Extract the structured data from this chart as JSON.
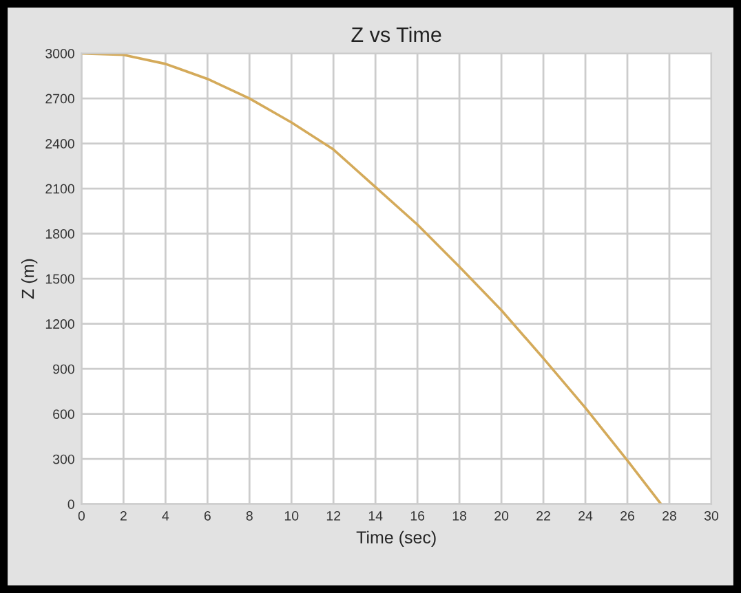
{
  "chart_data": {
    "type": "line",
    "title": "Z vs Time",
    "xlabel": "Time (sec)",
    "ylabel": "Z (m)",
    "x": [
      0,
      2,
      4,
      6,
      8,
      10,
      12,
      14,
      16,
      18,
      20,
      22,
      24,
      26,
      27.6
    ],
    "series": [
      {
        "color": "#d4aa5a",
        "values": [
          3000,
          2990,
          2930,
          2830,
          2700,
          2540,
          2360,
          2110,
          1860,
          1580,
          1290,
          970,
          640,
          290,
          0
        ]
      }
    ],
    "xlim": [
      0,
      30
    ],
    "xticks": [
      0,
      2,
      4,
      6,
      8,
      10,
      12,
      14,
      16,
      18,
      20,
      22,
      24,
      26,
      28,
      30
    ],
    "ylim": [
      0,
      3000
    ],
    "yticks": [
      0,
      300,
      600,
      900,
      1200,
      1500,
      1800,
      2100,
      2400,
      2700,
      3000
    ],
    "grid": true,
    "marker": "none",
    "line_style": "solid"
  }
}
